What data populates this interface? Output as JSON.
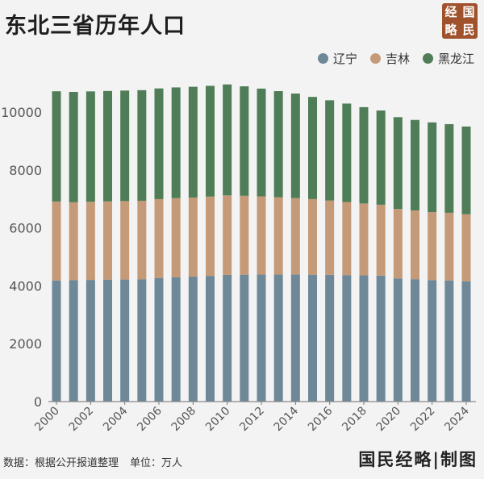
{
  "header": {
    "title": "东北三省历年人口"
  },
  "logo": {
    "chars": [
      "经",
      "国",
      "略",
      "民"
    ]
  },
  "watermark": "国民经略",
  "footer": {
    "source": "数据：根据公开报道整理",
    "unit": "单位：万人",
    "credit": "国民经略|制图"
  },
  "chart_data": {
    "type": "bar",
    "stacked": true,
    "title": "东北三省历年人口",
    "xlabel": "",
    "ylabel": "",
    "ylim": [
      0,
      11000
    ],
    "yticks": [
      0,
      2000,
      4000,
      6000,
      8000,
      10000
    ],
    "grid": false,
    "legend_position": "top-right",
    "categories": [
      "2000",
      "2001",
      "2002",
      "2003",
      "2004",
      "2005",
      "2006",
      "2007",
      "2008",
      "2009",
      "2010",
      "2011",
      "2012",
      "2013",
      "2014",
      "2015",
      "2016",
      "2017",
      "2018",
      "2019",
      "2020",
      "2021",
      "2022",
      "2023",
      "2024"
    ],
    "xtick_labels": [
      "2000",
      "2002",
      "2004",
      "2006",
      "2008",
      "2010",
      "2012",
      "2014",
      "2016",
      "2018",
      "2020",
      "2022",
      "2024"
    ],
    "series": [
      {
        "name": "辽宁",
        "color": "#6e8898",
        "values": [
          4184,
          4194,
          4203,
          4210,
          4217,
          4221,
          4271,
          4298,
          4315,
          4341,
          4375,
          4383,
          4389,
          4390,
          4391,
          4382,
          4378,
          4369,
          4359,
          4352,
          4255,
          4229,
          4197,
          4182,
          4155
        ]
      },
      {
        "name": "吉林",
        "color": "#c49a78",
        "values": [
          2728,
          2691,
          2699,
          2704,
          2709,
          2716,
          2723,
          2730,
          2734,
          2740,
          2747,
          2725,
          2698,
          2668,
          2642,
          2613,
          2567,
          2526,
          2484,
          2448,
          2399,
          2375,
          2348,
          2339,
          2317
        ]
      },
      {
        "name": "黑龙江",
        "color": "#4f7d57",
        "values": [
          3807,
          3811,
          3813,
          3815,
          3817,
          3820,
          3823,
          3824,
          3825,
          3826,
          3833,
          3782,
          3724,
          3666,
          3608,
          3529,
          3463,
          3399,
          3327,
          3255,
          3171,
          3125,
          3099,
          3062,
          3029
        ]
      }
    ]
  }
}
